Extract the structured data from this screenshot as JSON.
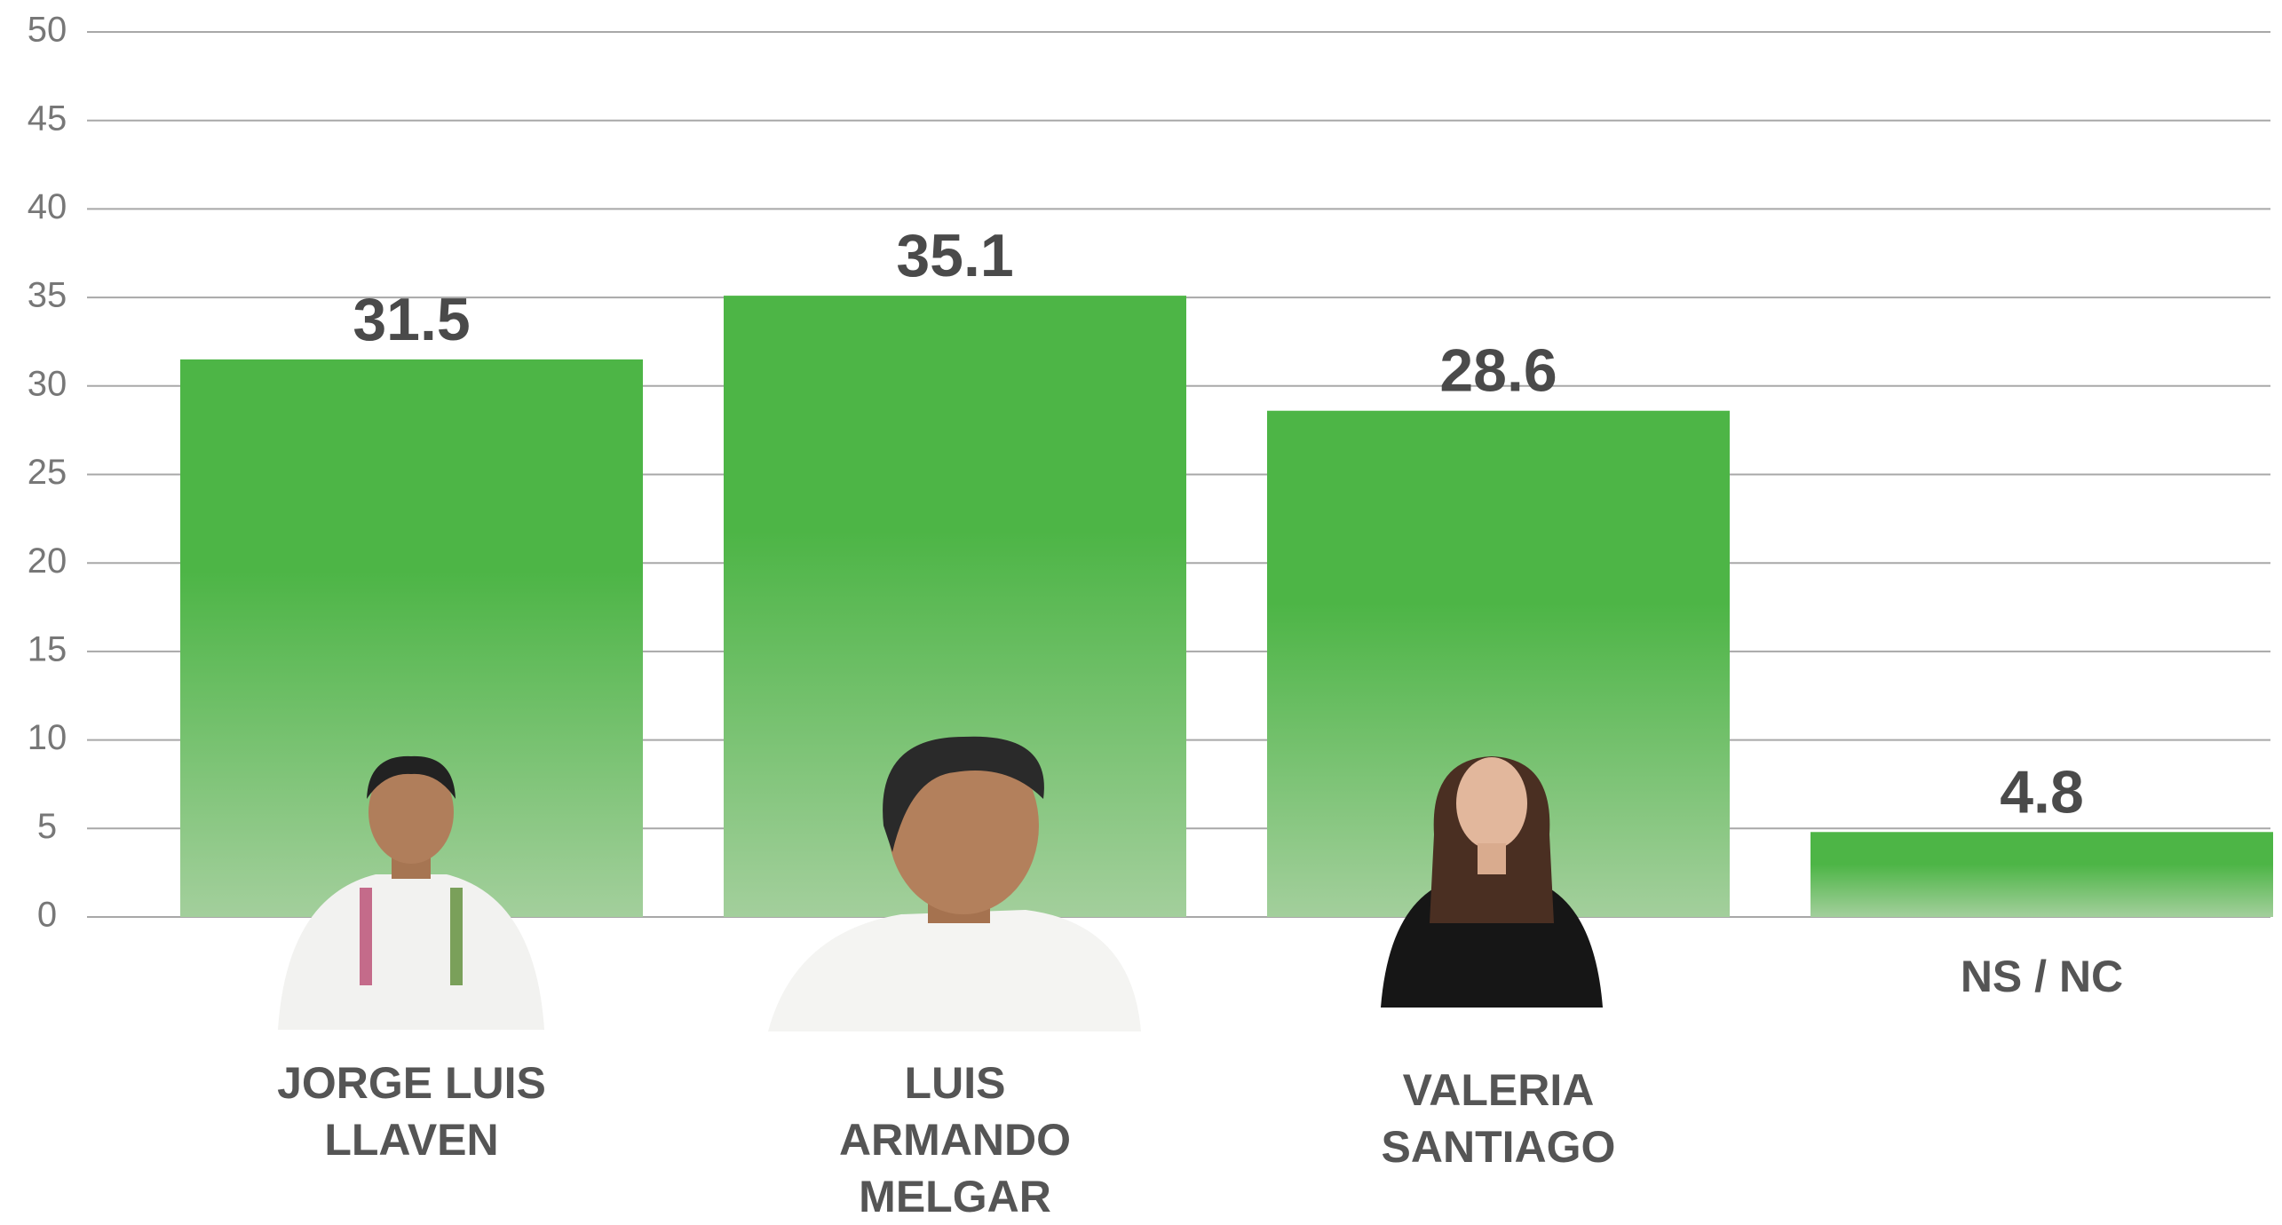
{
  "chart_data": {
    "type": "bar",
    "categories": [
      "JORGE LUIS LLAVEN",
      "LUIS ARMANDO MELGAR",
      "VALERIA SANTIAGO",
      "NS / NC"
    ],
    "values": [
      31.5,
      35.1,
      28.6,
      4.8
    ],
    "color": "#4db546",
    "ylim": [
      0,
      50
    ],
    "yticks": [
      0,
      5,
      10,
      15,
      20,
      25,
      30,
      35,
      40,
      45,
      50
    ],
    "grid": true
  }
}
